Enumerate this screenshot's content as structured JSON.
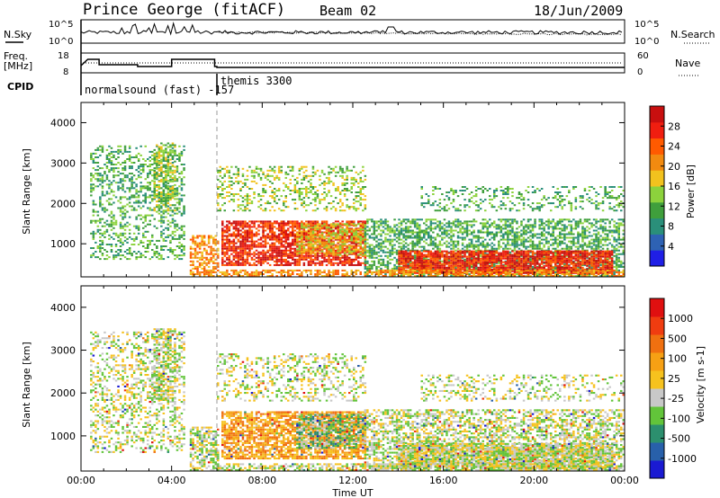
{
  "header": {
    "station": "Prince George (fitACF)",
    "beam": "Beam 02",
    "date": "18/Jun/2009"
  },
  "summary_panels": {
    "nsky_label": "N.Sky",
    "nsky_ticks": [
      "10^5",
      "10^0"
    ],
    "nsearch_label": "N.Search",
    "nsearch_ticks": [
      "10^5",
      "10^0"
    ],
    "freq_label_1": "Freq.",
    "freq_label_2": "[MHz]",
    "freq_ticks": [
      "18",
      "8"
    ],
    "nave_label": "Nave",
    "nave_ticks": [
      "60",
      "0"
    ],
    "cpid_label": "CPID",
    "cpid_text_1": "normalsound (fast) -157",
    "cpid_text_2": "themis 3300",
    "cpid_change_time_h": 6.0
  },
  "chart_data": [
    {
      "type": "heatmap",
      "name": "power",
      "ylabel": "Slant Range [km]",
      "yticks": [
        "1000",
        "2000",
        "3000",
        "4000"
      ],
      "ylim": [
        180,
        4500
      ],
      "xlim": [
        0,
        24
      ],
      "colorbar_label": "Power [dB]",
      "colorbar_ticks": [
        "4",
        "8",
        "12",
        "16",
        "20",
        "24",
        "28"
      ],
      "colorbar_colors": [
        "#1f1fe6",
        "#2e62b4",
        "#2a8f7a",
        "#3f9f3c",
        "#8cd23c",
        "#f2c21e",
        "#f28a10",
        "#ff5a00",
        "#f01e10",
        "#c80f0f"
      ],
      "colorbar_range": [
        0,
        30
      ]
    },
    {
      "type": "heatmap",
      "name": "velocity",
      "ylabel": "Slant Range [km]",
      "yticks": [
        "1000",
        "2000",
        "3000",
        "4000"
      ],
      "ylim": [
        180,
        4500
      ],
      "xlim": [
        0,
        24
      ],
      "xlabel": "Time UT",
      "xticks": [
        "00:00",
        "04:00",
        "08:00",
        "12:00",
        "16:00",
        "20:00",
        "00:00"
      ],
      "colorbar_label": "Velocity [m s-1]",
      "colorbar_ticks": [
        "1000",
        "500",
        "100",
        "25",
        "-25",
        "-100",
        "-500",
        "-1000"
      ],
      "colorbar_colors": [
        "#1a1ad2",
        "#2860aa",
        "#2c8f6e",
        "#62c43a",
        "#c8c8c8",
        "#f6c21e",
        "#f6a014",
        "#f07010",
        "#f03c10",
        "#e01010"
      ]
    }
  ]
}
